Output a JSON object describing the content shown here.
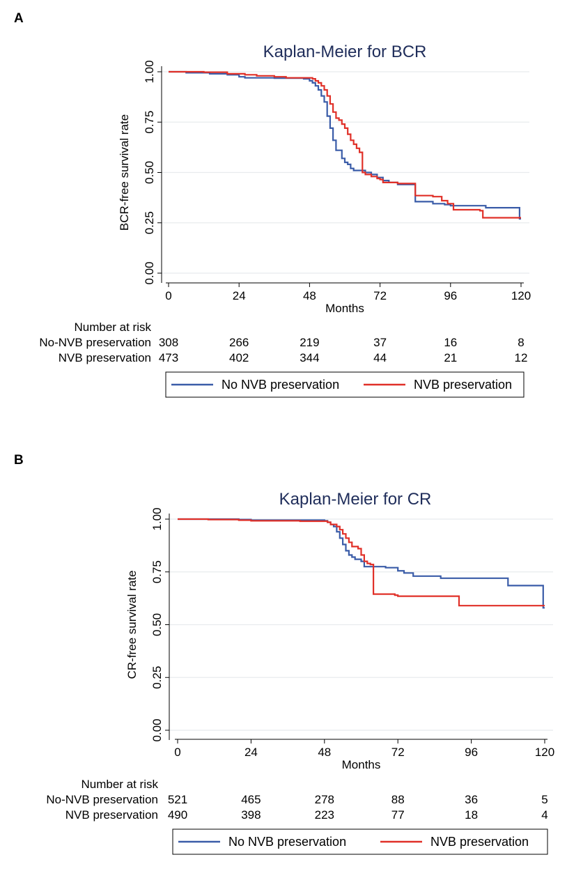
{
  "chart_data": [
    {
      "panel_label": "A",
      "type": "line",
      "title": "Kaplan-Meier for BCR",
      "xlabel": "Months",
      "ylabel": "BCR-free survival rate",
      "xlim": [
        0,
        120
      ],
      "ylim": [
        0,
        1
      ],
      "xticks": [
        "0",
        "24",
        "48",
        "72",
        "96",
        "120"
      ],
      "yticks": [
        "0.00",
        "0.25",
        "0.50",
        "0.75",
        "1.00"
      ],
      "grid": true,
      "legend_position": "bottom",
      "risk_table": {
        "header": "Number at risk",
        "rows": [
          {
            "label": "No-NVB preservation",
            "values": [
              "308",
              "266",
              "219",
              "37",
              "16",
              "8"
            ]
          },
          {
            "label": "NVB preservation",
            "values": [
              "473",
              "402",
              "344",
              "44",
              "21",
              "12"
            ]
          }
        ]
      },
      "series": [
        {
          "name": "No NVB preservation",
          "color": "#3a5ca8",
          "points": [
            [
              0,
              1.0
            ],
            [
              6,
              0.995
            ],
            [
              14,
              0.99
            ],
            [
              20,
              0.985
            ],
            [
              24,
              0.975
            ],
            [
              26,
              0.97
            ],
            [
              36,
              0.968
            ],
            [
              46,
              0.965
            ],
            [
              48,
              0.955
            ],
            [
              49,
              0.945
            ],
            [
              50,
              0.93
            ],
            [
              51,
              0.91
            ],
            [
              52,
              0.88
            ],
            [
              53,
              0.85
            ],
            [
              54,
              0.78
            ],
            [
              55,
              0.72
            ],
            [
              56,
              0.66
            ],
            [
              57,
              0.61
            ],
            [
              59,
              0.57
            ],
            [
              60,
              0.55
            ],
            [
              61,
              0.54
            ],
            [
              62,
              0.52
            ],
            [
              63,
              0.51
            ],
            [
              67,
              0.5
            ],
            [
              69,
              0.49
            ],
            [
              71,
              0.475
            ],
            [
              73,
              0.46
            ],
            [
              75,
              0.45
            ],
            [
              78,
              0.44
            ],
            [
              83,
              0.44
            ],
            [
              84,
              0.355
            ],
            [
              90,
              0.345
            ],
            [
              94,
              0.34
            ],
            [
              96,
              0.335
            ],
            [
              108,
              0.325
            ],
            [
              119.5,
              0.325
            ],
            [
              119.5,
              0.27
            ],
            [
              120,
              0.27
            ]
          ]
        },
        {
          "name": "NVB preservation",
          "color": "#e03028",
          "points": [
            [
              0,
              1.0
            ],
            [
              12,
              0.998
            ],
            [
              20,
              0.99
            ],
            [
              26,
              0.985
            ],
            [
              30,
              0.98
            ],
            [
              36,
              0.975
            ],
            [
              40,
              0.97
            ],
            [
              47,
              0.97
            ],
            [
              48,
              0.97
            ],
            [
              49,
              0.965
            ],
            [
              50,
              0.955
            ],
            [
              51,
              0.945
            ],
            [
              52,
              0.93
            ],
            [
              53,
              0.91
            ],
            [
              54,
              0.88
            ],
            [
              55,
              0.84
            ],
            [
              56,
              0.8
            ],
            [
              57,
              0.77
            ],
            [
              58,
              0.76
            ],
            [
              59,
              0.74
            ],
            [
              60,
              0.72
            ],
            [
              61,
              0.69
            ],
            [
              62,
              0.66
            ],
            [
              63,
              0.64
            ],
            [
              64,
              0.62
            ],
            [
              65,
              0.6
            ],
            [
              66,
              0.5
            ],
            [
              67,
              0.49
            ],
            [
              69,
              0.48
            ],
            [
              71,
              0.47
            ],
            [
              72,
              0.465
            ],
            [
              73,
              0.45
            ],
            [
              78,
              0.445
            ],
            [
              83,
              0.445
            ],
            [
              84,
              0.385
            ],
            [
              90,
              0.38
            ],
            [
              93,
              0.36
            ],
            [
              95,
              0.345
            ],
            [
              97,
              0.315
            ],
            [
              106,
              0.31
            ],
            [
              107,
              0.275
            ],
            [
              120,
              0.275
            ]
          ]
        }
      ]
    },
    {
      "panel_label": "B",
      "type": "line",
      "title": "Kaplan-Meier for CR",
      "xlabel": "Months",
      "ylabel": "CR-free survival rate",
      "xlim": [
        0,
        120
      ],
      "ylim": [
        0,
        1
      ],
      "xticks": [
        "0",
        "24",
        "48",
        "72",
        "96",
        "120"
      ],
      "yticks": [
        "0.00",
        "0.25",
        "0.50",
        "0.75",
        "1.00"
      ],
      "grid": true,
      "legend_position": "bottom",
      "risk_table": {
        "header": "Number at risk",
        "rows": [
          {
            "label": "No-NVB preservation",
            "values": [
              "521",
              "465",
              "278",
              "88",
              "36",
              "5"
            ]
          },
          {
            "label": "NVB preservation",
            "values": [
              "490",
              "398",
              "223",
              "77",
              "18",
              "4"
            ]
          }
        ]
      },
      "series": [
        {
          "name": "No NVB preservation",
          "color": "#3a5ca8",
          "points": [
            [
              0,
              1.0
            ],
            [
              20,
              0.998
            ],
            [
              24,
              0.995
            ],
            [
              30,
              0.995
            ],
            [
              40,
              0.995
            ],
            [
              48,
              0.992
            ],
            [
              49,
              0.985
            ],
            [
              50,
              0.975
            ],
            [
              51,
              0.965
            ],
            [
              52,
              0.94
            ],
            [
              53,
              0.91
            ],
            [
              54,
              0.88
            ],
            [
              55,
              0.85
            ],
            [
              56,
              0.83
            ],
            [
              57,
              0.82
            ],
            [
              58,
              0.81
            ],
            [
              60,
              0.8
            ],
            [
              61,
              0.775
            ],
            [
              66,
              0.775
            ],
            [
              68,
              0.77
            ],
            [
              72,
              0.755
            ],
            [
              74,
              0.745
            ],
            [
              77,
              0.73
            ],
            [
              86,
              0.72
            ],
            [
              100,
              0.72
            ],
            [
              108,
              0.685
            ],
            [
              119.5,
              0.685
            ],
            [
              119.5,
              0.58
            ],
            [
              120,
              0.58
            ]
          ]
        },
        {
          "name": "NVB preservation",
          "color": "#e03028",
          "points": [
            [
              0,
              1.0
            ],
            [
              10,
              0.998
            ],
            [
              20,
              0.995
            ],
            [
              24,
              0.992
            ],
            [
              40,
              0.99
            ],
            [
              49,
              0.985
            ],
            [
              50,
              0.975
            ],
            [
              52,
              0.965
            ],
            [
              53,
              0.95
            ],
            [
              54,
              0.93
            ],
            [
              55,
              0.91
            ],
            [
              56,
              0.89
            ],
            [
              57,
              0.87
            ],
            [
              59,
              0.86
            ],
            [
              60,
              0.83
            ],
            [
              61,
              0.8
            ],
            [
              62,
              0.79
            ],
            [
              63,
              0.785
            ],
            [
              64,
              0.645
            ],
            [
              71,
              0.64
            ],
            [
              72,
              0.635
            ],
            [
              77,
              0.635
            ],
            [
              92,
              0.59
            ],
            [
              120,
              0.59
            ]
          ]
        }
      ]
    }
  ]
}
